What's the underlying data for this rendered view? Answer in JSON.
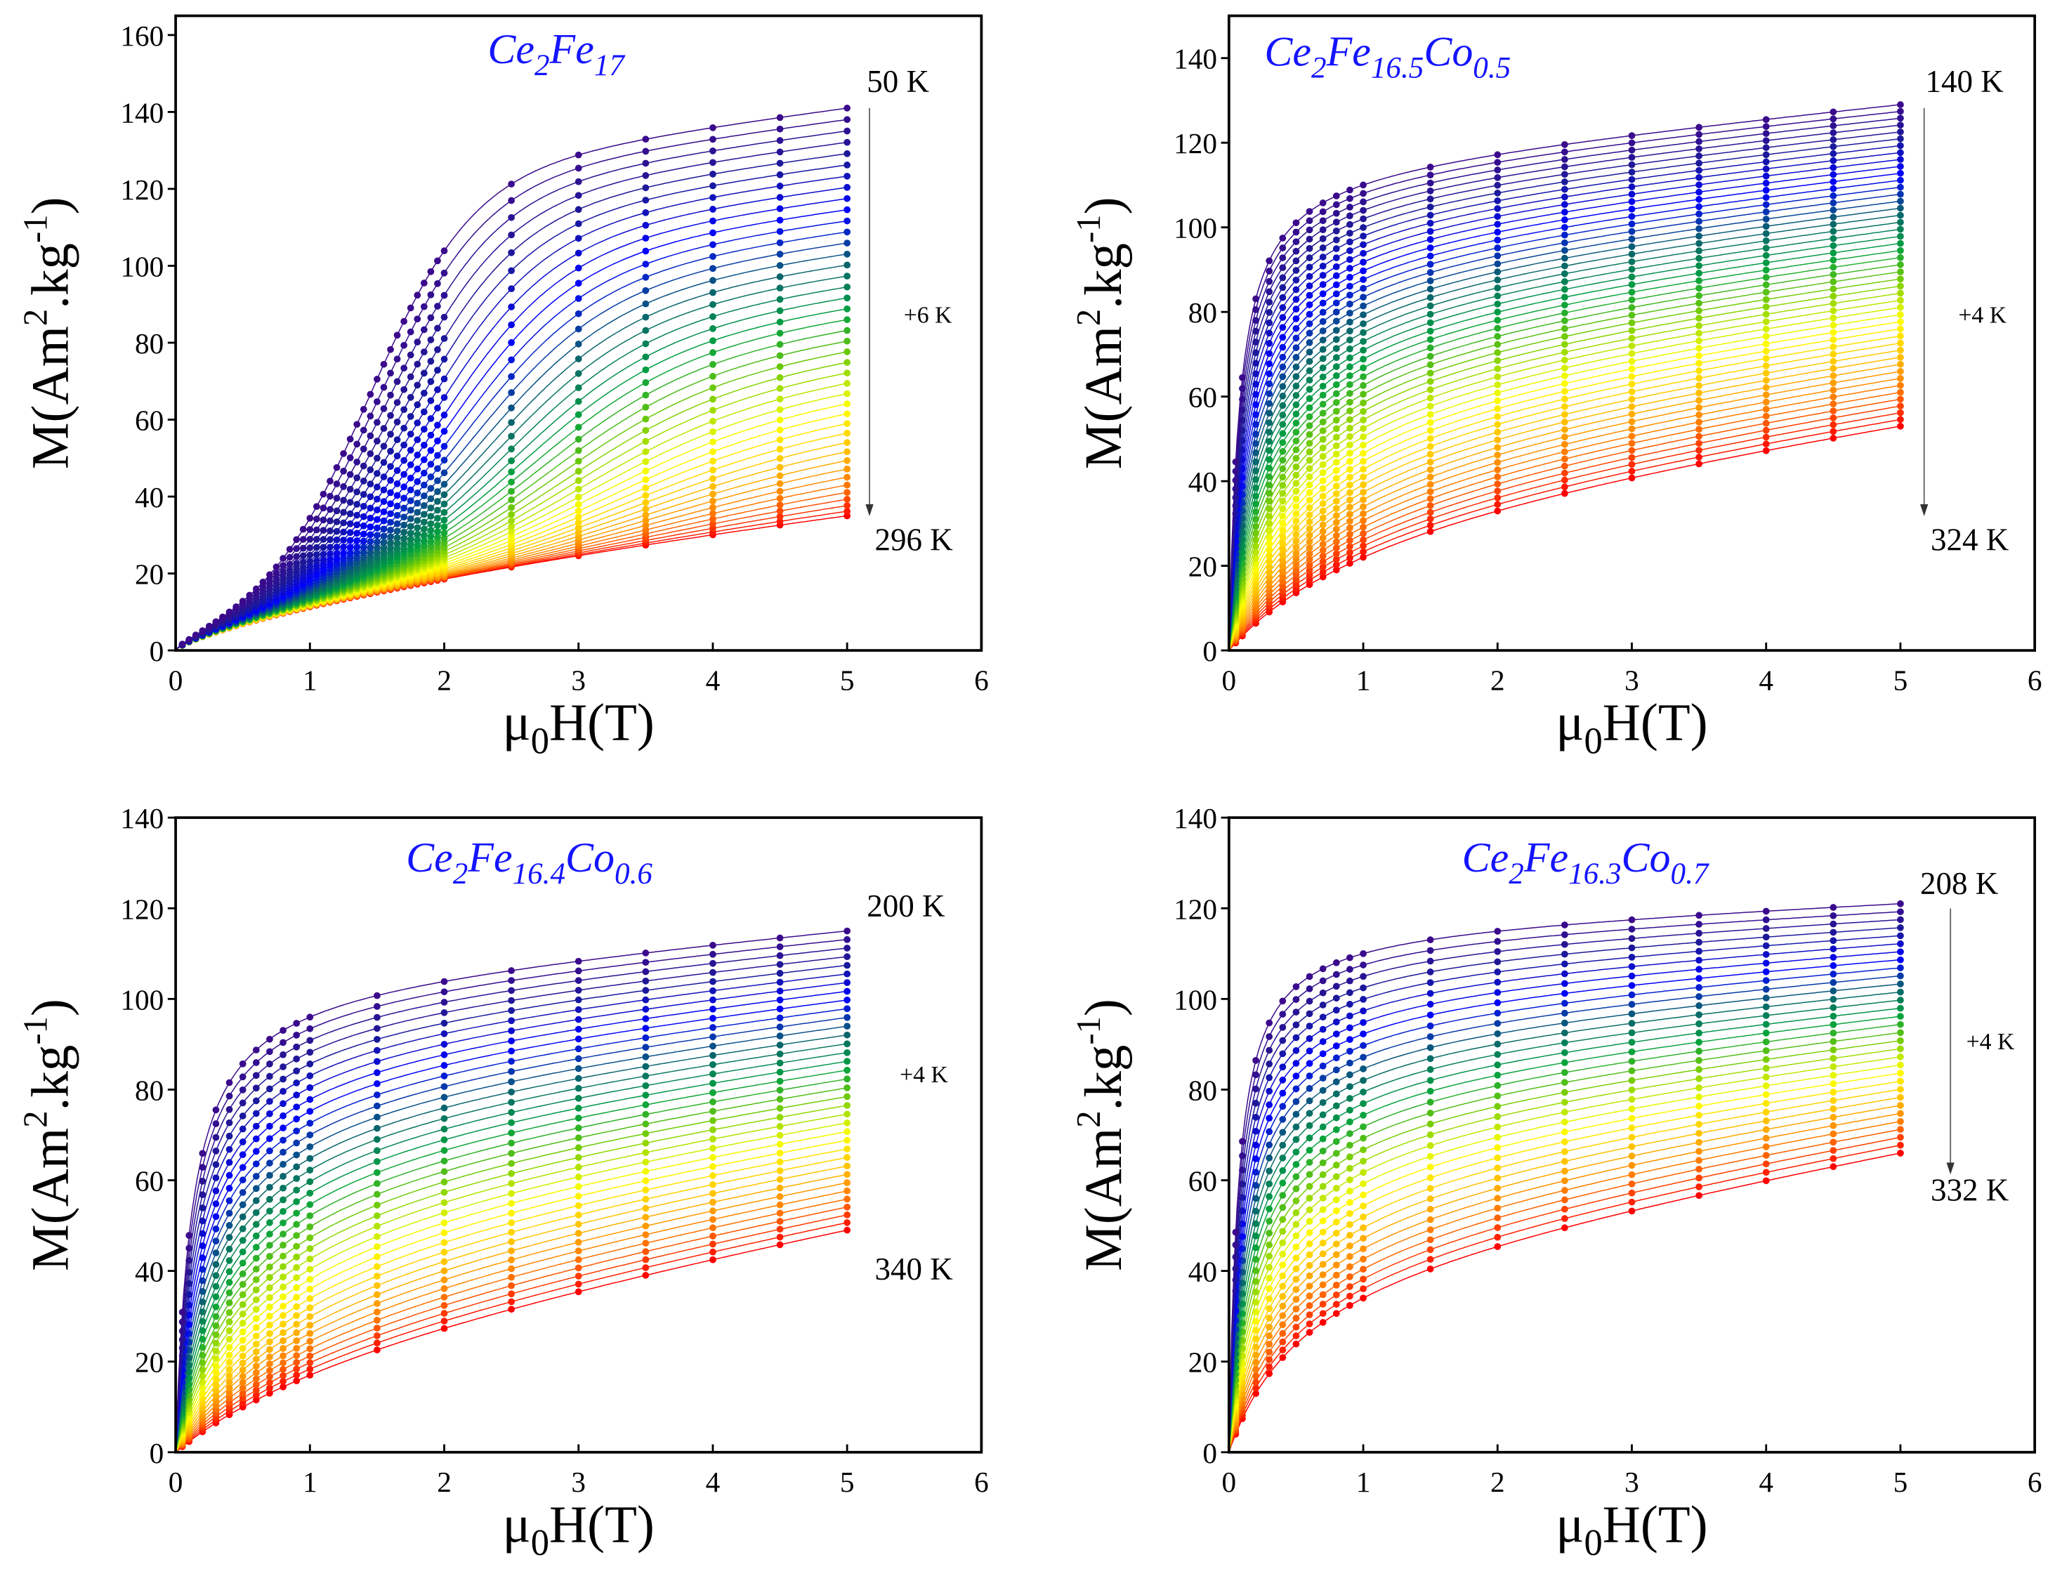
{
  "chart_data": [
    {
      "type": "line",
      "title_parts": [
        {
          "t": "Ce",
          "sub": false
        },
        {
          "t": "2",
          "sub": true
        },
        {
          "t": "Fe",
          "sub": false
        },
        {
          "t": "17",
          "sub": true
        }
      ],
      "xlabel": "μ0H(T)",
      "ylabel": "M(Am2.kg-1)",
      "xlim": [
        0,
        6
      ],
      "ylim": [
        0,
        165
      ],
      "xticks": [
        0,
        1,
        2,
        3,
        4,
        5,
        6
      ],
      "yticks": [
        0,
        20,
        40,
        60,
        80,
        100,
        120,
        140,
        160
      ],
      "temperature_start_K": 50,
      "temperature_step_K": 6,
      "temperature_end_K": 296,
      "label_start": "50 K",
      "label_step": "+6 K",
      "label_end": "296 K",
      "fields_T": [
        0,
        0.05,
        0.1,
        0.15,
        0.2,
        0.25,
        0.3,
        0.35,
        0.4,
        0.45,
        0.5,
        0.55,
        0.6,
        0.65,
        0.7,
        0.75,
        0.8,
        0.85,
        0.9,
        0.95,
        1,
        1.05,
        1.1,
        1.15,
        1.2,
        1.25,
        1.3,
        1.35,
        1.4,
        1.45,
        1.5,
        1.55,
        1.6,
        1.65,
        1.7,
        1.75,
        1.8,
        1.85,
        1.9,
        1.95,
        2,
        2.5,
        3,
        3.5,
        4,
        4.5,
        5
      ],
      "model": "metamagnetic",
      "M_at_5T_first": 141,
      "M_at_5T_last": 35,
      "M_at_2T_first": 106,
      "M_at_2T_last": 18,
      "arrow": true
    },
    {
      "type": "line",
      "title_parts": [
        {
          "t": "Ce",
          "sub": false
        },
        {
          "t": "2",
          "sub": true
        },
        {
          "t": "Fe",
          "sub": false
        },
        {
          "t": "16.5",
          "sub": true
        },
        {
          "t": "Co",
          "sub": false
        },
        {
          "t": "0.5",
          "sub": true
        }
      ],
      "xlabel": "μ0H(T)",
      "ylabel": "M(Am2.kg-1)",
      "xlim": [
        0,
        6
      ],
      "ylim": [
        0,
        150
      ],
      "xticks": [
        0,
        1,
        2,
        3,
        4,
        5,
        6
      ],
      "yticks": [
        0,
        20,
        40,
        60,
        80,
        100,
        120,
        140
      ],
      "temperature_start_K": 140,
      "temperature_step_K": 4,
      "temperature_end_K": 324,
      "label_start": "140 K",
      "label_step": "+4 K",
      "label_end": "324 K",
      "fields_T": [
        0,
        0.05,
        0.1,
        0.2,
        0.3,
        0.4,
        0.5,
        0.6,
        0.7,
        0.8,
        0.9,
        1,
        1.5,
        2,
        2.5,
        3,
        3.5,
        4,
        4.5,
        5
      ],
      "model": "ferromagnetic",
      "M_at_1T_first": 110,
      "M_at_5T_first": 129,
      "h0_first": 0.08,
      "M_at_1T_last": 22,
      "M_at_5T_last": 53,
      "h0_last": 1.2,
      "arrow": true
    },
    {
      "type": "line",
      "title_parts": [
        {
          "t": "Ce",
          "sub": false
        },
        {
          "t": "2",
          "sub": true
        },
        {
          "t": "Fe",
          "sub": false
        },
        {
          "t": "16.4",
          "sub": true
        },
        {
          "t": "Co",
          "sub": false
        },
        {
          "t": "0.6",
          "sub": true
        }
      ],
      "xlabel": "μ0H(T)",
      "ylabel": "M(Am2.kg-1)",
      "xlim": [
        0,
        6
      ],
      "ylim": [
        0,
        140
      ],
      "xticks": [
        0,
        1,
        2,
        3,
        4,
        5,
        6
      ],
      "yticks": [
        0,
        20,
        40,
        60,
        80,
        100,
        120,
        140
      ],
      "temperature_start_K": 200,
      "temperature_step_K": 4,
      "temperature_end_K": 340,
      "label_start": "200 K",
      "label_step": "+4 K",
      "label_end": "340 K",
      "fields_T": [
        0,
        0.05,
        0.1,
        0.2,
        0.3,
        0.4,
        0.5,
        0.6,
        0.7,
        0.8,
        0.9,
        1,
        1.5,
        2,
        2.5,
        3,
        3.5,
        4,
        4.5,
        5
      ],
      "model": "ferromagnetic",
      "M_at_1T_first": 96,
      "M_at_5T_first": 115,
      "h0_first": 0.12,
      "M_at_1T_last": 17,
      "M_at_5T_last": 49,
      "h0_last": 1.5,
      "arrow": false
    },
    {
      "type": "line",
      "title_parts": [
        {
          "t": "Ce",
          "sub": false
        },
        {
          "t": "2",
          "sub": true
        },
        {
          "t": "Fe",
          "sub": false
        },
        {
          "t": "16.3",
          "sub": true
        },
        {
          "t": "Co",
          "sub": false
        },
        {
          "t": "0.7",
          "sub": true
        }
      ],
      "xlabel": "μ0H(T)",
      "ylabel": "M(Am2.kg-1)",
      "xlim": [
        0,
        6
      ],
      "ylim": [
        0,
        140
      ],
      "xticks": [
        0,
        1,
        2,
        3,
        4,
        5,
        6
      ],
      "yticks": [
        0,
        20,
        40,
        60,
        80,
        100,
        120,
        140
      ],
      "temperature_start_K": 208,
      "temperature_step_K": 4,
      "temperature_end_K": 332,
      "label_start": "208 K",
      "label_step": "+4 K",
      "label_end": "332 K",
      "fields_T": [
        0,
        0.05,
        0.1,
        0.2,
        0.3,
        0.4,
        0.5,
        0.6,
        0.7,
        0.8,
        0.9,
        1,
        1.5,
        2,
        2.5,
        3,
        3.5,
        4,
        4.5,
        5
      ],
      "model": "ferromagnetic",
      "M_at_1T_first": 110,
      "M_at_5T_first": 121,
      "h0_first": 0.07,
      "M_at_1T_last": 34,
      "M_at_5T_last": 66,
      "h0_last": 0.55,
      "arrow": true
    }
  ],
  "axis_labels": {
    "y_main": "M(Am",
    "y_sup1": "2",
    "y_mid": ".kg",
    "y_sup2": "-1",
    "y_end": ")",
    "x_mu": "μ",
    "x_sub": "0",
    "x_rest": "H(T)"
  },
  "colors": {
    "spectrum": [
      "#3b0a8c",
      "#1a1a9a",
      "#0000ff",
      "#0a6070",
      "#00a040",
      "#7fd000",
      "#ffff00",
      "#ffc000",
      "#ff7000",
      "#ff0000"
    ],
    "title": "#1414ff"
  }
}
